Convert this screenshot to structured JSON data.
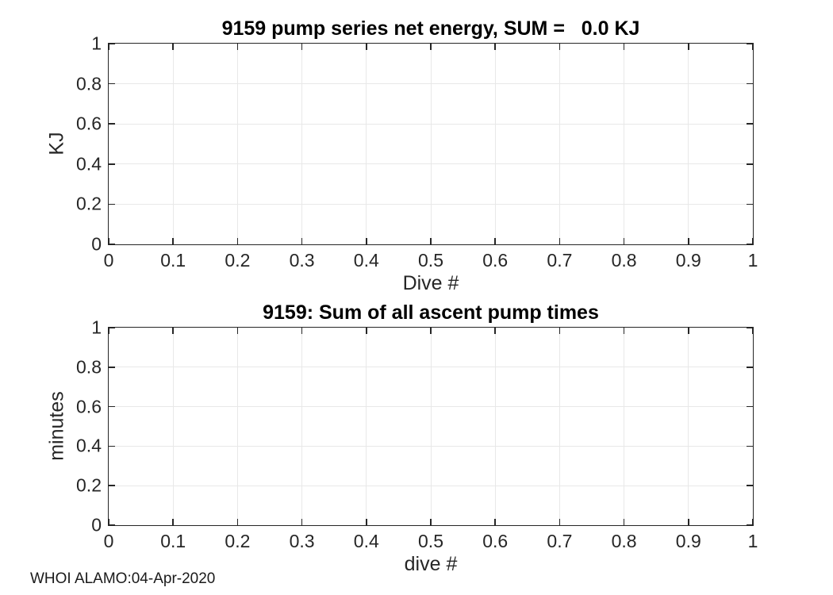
{
  "figure": {
    "footer": "WHOI ALAMO:04-Apr-2020",
    "background_color": "#ffffff",
    "axis_color": "#262626",
    "grid_color": "#e8e8e8",
    "title_color": "#000000"
  },
  "chart_data": [
    {
      "type": "line",
      "title": "9159 pump series net energy, SUM =   0.0 KJ",
      "xlabel": "Dive #",
      "ylabel": "KJ",
      "xlim": [
        0,
        1
      ],
      "ylim": [
        0,
        1
      ],
      "xticks": [
        0,
        0.1,
        0.2,
        0.3,
        0.4,
        0.5,
        0.6,
        0.7,
        0.8,
        0.9,
        1
      ],
      "xtick_labels": [
        "0",
        "0.1",
        "0.2",
        "0.3",
        "0.4",
        "0.5",
        "0.6",
        "0.7",
        "0.8",
        "0.9",
        "1"
      ],
      "yticks": [
        0,
        0.2,
        0.4,
        0.6,
        0.8,
        1
      ],
      "ytick_labels": [
        "0",
        "0.2",
        "0.4",
        "0.6",
        "0.8",
        "1"
      ],
      "grid": true,
      "box": true,
      "legend": null,
      "series": []
    },
    {
      "type": "line",
      "title": "9159: Sum of all ascent pump times",
      "xlabel": "dive #",
      "ylabel": "minutes",
      "xlim": [
        0,
        1
      ],
      "ylim": [
        0,
        1
      ],
      "xticks": [
        0,
        0.1,
        0.2,
        0.3,
        0.4,
        0.5,
        0.6,
        0.7,
        0.8,
        0.9,
        1
      ],
      "xtick_labels": [
        "0",
        "0.1",
        "0.2",
        "0.3",
        "0.4",
        "0.5",
        "0.6",
        "0.7",
        "0.8",
        "0.9",
        "1"
      ],
      "yticks": [
        0,
        0.2,
        0.4,
        0.6,
        0.8,
        1
      ],
      "ytick_labels": [
        "0",
        "0.2",
        "0.4",
        "0.6",
        "0.8",
        "1"
      ],
      "grid": true,
      "box": true,
      "legend": null,
      "series": []
    }
  ]
}
